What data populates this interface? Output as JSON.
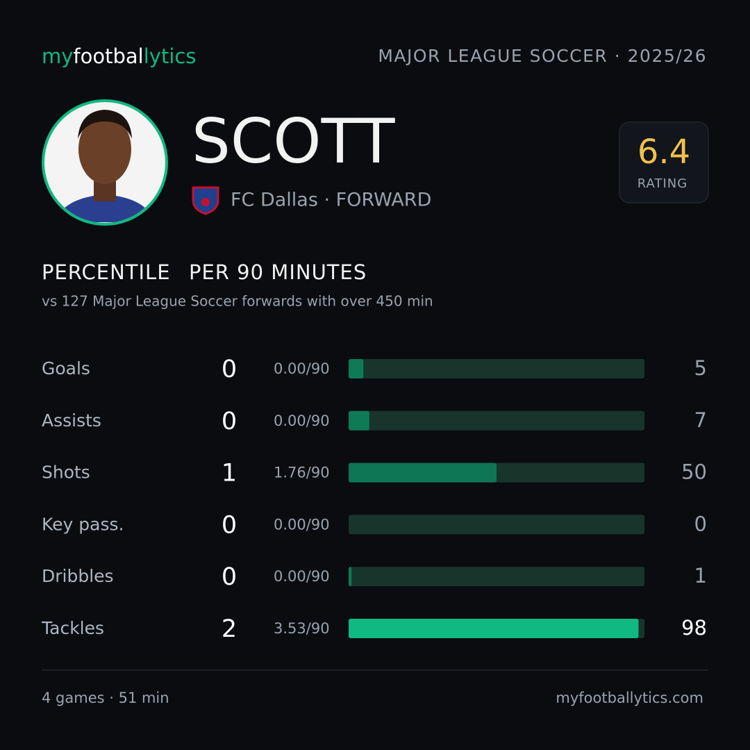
{
  "brand": [
    "my",
    "footbal",
    "lytics"
  ],
  "league": "MAJOR LEAGUE SOCCER · 2025/26",
  "player": {
    "name": "SCOTT",
    "team_line": "FC Dallas · FORWARD",
    "rating": 6.4,
    "rating_label": "RATING"
  },
  "chart_data": {
    "type": "bar",
    "title": "PERCENTILE",
    "subtitle": "PER 90 MINUTES",
    "note": "vs 127 Major League Soccer forwards with over 450 min",
    "categories": [
      "Goals",
      "Assists",
      "Shots",
      "Key pass.",
      "Dribbles",
      "Tackles"
    ],
    "totals": [
      0,
      0,
      1,
      0,
      0,
      2
    ],
    "per90": [
      "0.00/90",
      "0.00/90",
      "1.76/90",
      "0.00/90",
      "0.00/90",
      "3.53/90"
    ],
    "values": [
      5,
      7,
      50,
      0,
      1,
      98
    ],
    "colors": [
      "#0e7a56",
      "#0e7a56",
      "#0e7555",
      "#0e7a56",
      "#0e7a56",
      "#10b981"
    ],
    "track_color": "#17352b",
    "xlim": [
      0,
      100
    ]
  },
  "footer": {
    "summary": "4 games · 51 min",
    "site": "myfootballytics.com"
  }
}
